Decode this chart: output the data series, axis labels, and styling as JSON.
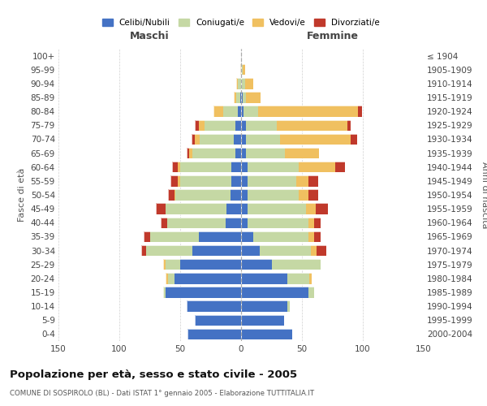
{
  "age_groups": [
    "0-4",
    "5-9",
    "10-14",
    "15-19",
    "20-24",
    "25-29",
    "30-34",
    "35-39",
    "40-44",
    "45-49",
    "50-54",
    "55-59",
    "60-64",
    "65-69",
    "70-74",
    "75-79",
    "80-84",
    "85-89",
    "90-94",
    "95-99",
    "100+"
  ],
  "birth_years": [
    "2000-2004",
    "1995-1999",
    "1990-1994",
    "1985-1989",
    "1980-1984",
    "1975-1979",
    "1970-1974",
    "1965-1969",
    "1960-1964",
    "1955-1959",
    "1950-1954",
    "1945-1949",
    "1940-1944",
    "1935-1939",
    "1930-1934",
    "1925-1929",
    "1920-1924",
    "1915-1919",
    "1910-1914",
    "1905-1909",
    "≤ 1904"
  ],
  "maschi": {
    "celibi": [
      44,
      38,
      45,
      62,
      55,
      50,
      40,
      35,
      13,
      12,
      9,
      8,
      8,
      5,
      6,
      5,
      3,
      1,
      0,
      0,
      0
    ],
    "coniugati": [
      0,
      0,
      0,
      2,
      5,
      12,
      38,
      40,
      48,
      50,
      45,
      42,
      42,
      35,
      28,
      25,
      12,
      3,
      3,
      0,
      0
    ],
    "vedovi": [
      0,
      0,
      0,
      0,
      2,
      2,
      0,
      0,
      0,
      0,
      1,
      2,
      2,
      3,
      4,
      5,
      8,
      2,
      1,
      1,
      0
    ],
    "divorziati": [
      0,
      0,
      0,
      0,
      0,
      0,
      4,
      5,
      5,
      8,
      5,
      6,
      5,
      2,
      3,
      3,
      0,
      0,
      0,
      0,
      0
    ]
  },
  "femmine": {
    "nubili": [
      42,
      35,
      38,
      55,
      38,
      25,
      15,
      10,
      5,
      5,
      5,
      5,
      5,
      4,
      4,
      4,
      2,
      1,
      0,
      0,
      0
    ],
    "coniugate": [
      0,
      0,
      2,
      5,
      18,
      40,
      42,
      45,
      50,
      48,
      42,
      40,
      42,
      32,
      28,
      25,
      12,
      3,
      3,
      1,
      0
    ],
    "vedove": [
      0,
      0,
      0,
      0,
      2,
      0,
      5,
      5,
      5,
      8,
      8,
      10,
      30,
      28,
      58,
      58,
      82,
      12,
      7,
      2,
      0
    ],
    "divorziate": [
      0,
      0,
      0,
      0,
      0,
      0,
      8,
      5,
      5,
      10,
      8,
      8,
      8,
      0,
      5,
      3,
      3,
      0,
      0,
      0,
      0
    ]
  },
  "colors": {
    "celibi": "#4472c4",
    "coniugati": "#c5d8a4",
    "vedovi": "#f0c060",
    "divorziati": "#c0392b"
  },
  "title": "Popolazione per età, sesso e stato civile - 2005",
  "subtitle": "COMUNE DI SOSPIROLO (BL) - Dati ISTAT 1° gennaio 2005 - Elaborazione TUTTITALIA.IT",
  "xlabel_maschi": "Maschi",
  "xlabel_femmine": "Femmine",
  "ylabel_left": "Fasce di età",
  "ylabel_right": "Anni di nascita",
  "xlim": 150,
  "bg": "#ffffff",
  "grid_color": "#cccccc"
}
